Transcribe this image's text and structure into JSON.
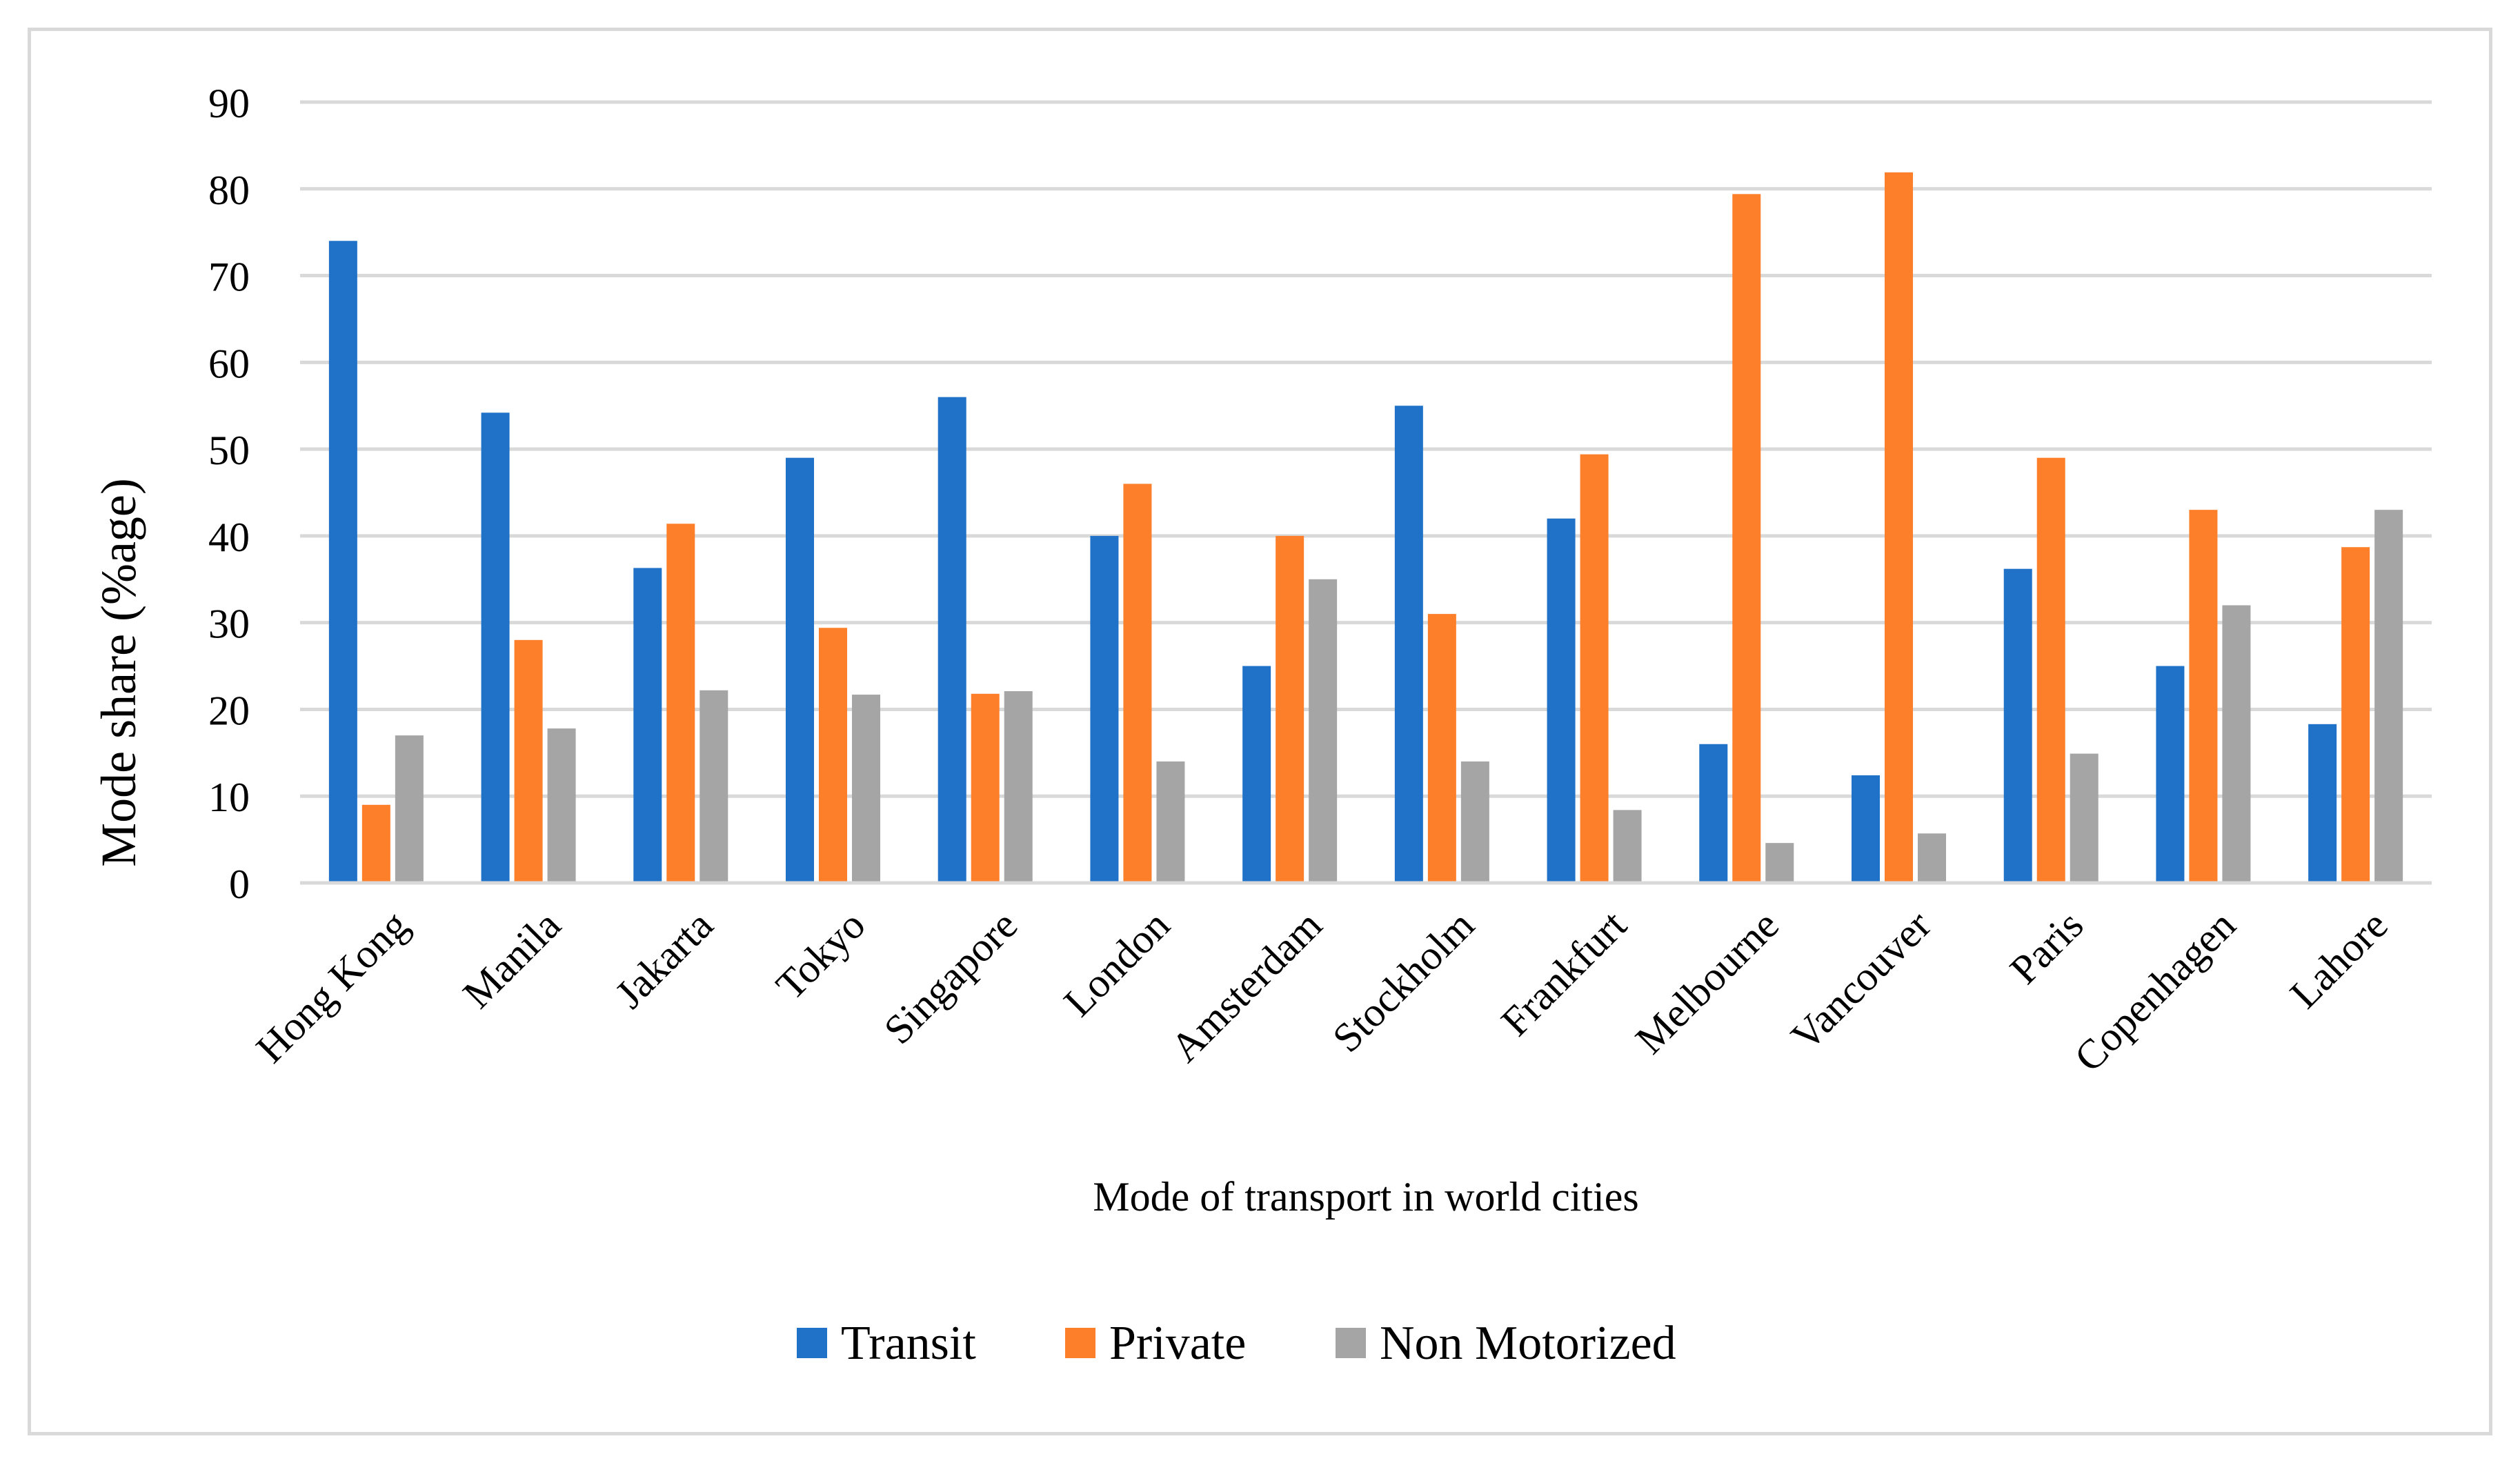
{
  "chart_data": {
    "type": "bar",
    "title": "",
    "xlabel": "Mode of transport in world cities",
    "ylabel": "Mode share (%age)",
    "ylim": [
      0,
      90
    ],
    "yticks": [
      "0",
      "10",
      "20",
      "30",
      "40",
      "50",
      "60",
      "70",
      "80",
      "90"
    ],
    "grid": true,
    "legend_position": "bottom",
    "categories": [
      "Hong Kong",
      "Manila",
      "Jakarta",
      "Tokyo",
      "Singapore",
      "London",
      "Amsterdam",
      "Stockholm",
      "Frankfurt",
      "Melbourne",
      "Vancouver",
      "Paris",
      "Copenhagen",
      "Lahore"
    ],
    "series": [
      {
        "name": "Transit",
        "color": "#1f72c8",
        "values": [
          74,
          54.2,
          36.3,
          49,
          56,
          40,
          25,
          55,
          42,
          16,
          12.4,
          36.2,
          25,
          18.3
        ]
      },
      {
        "name": "Private",
        "color": "#fd7f2a",
        "values": [
          9,
          28,
          41.4,
          29.4,
          21.8,
          46,
          40,
          31,
          49.4,
          79.4,
          81.9,
          49,
          43,
          38.7
        ]
      },
      {
        "name": "Non Motorized",
        "color": "#a5a5a5",
        "values": [
          17,
          17.8,
          22.2,
          21.7,
          22.1,
          14,
          35,
          14,
          8.4,
          4.6,
          5.7,
          14.9,
          32,
          43
        ]
      }
    ]
  }
}
